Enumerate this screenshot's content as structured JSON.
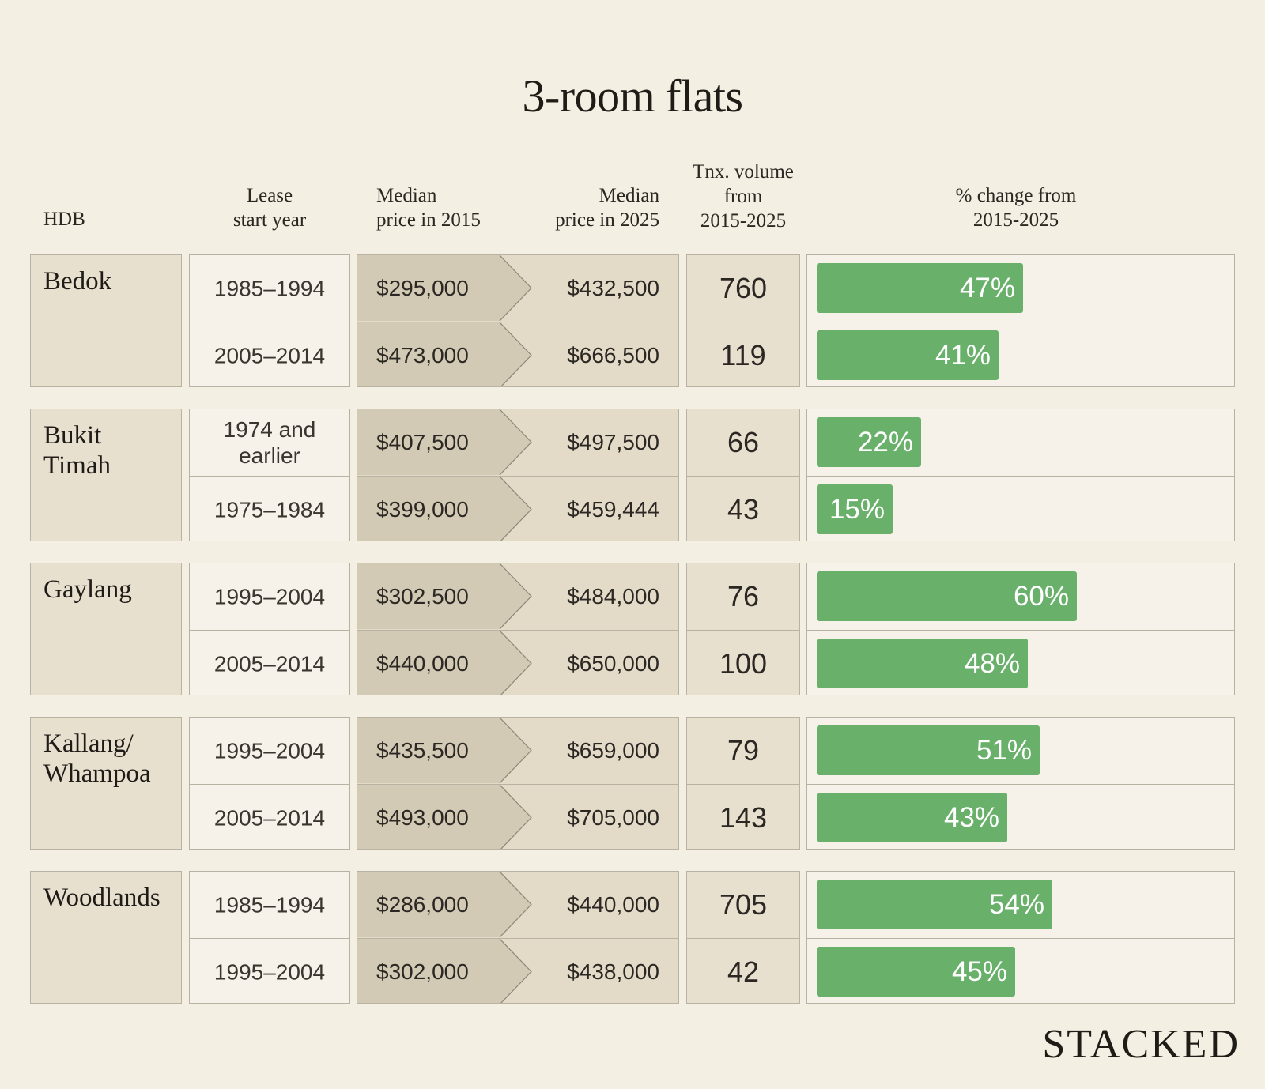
{
  "title": "3-room flats",
  "headers": {
    "hdb": "HDB",
    "lease": "Lease\nstart year",
    "median2015": "Median\nprice in 2015",
    "median2025": "Median\nprice in 2025",
    "volume": "Tnx. volume\nfrom\n2015-2025",
    "change": "% change from\n2015-2025"
  },
  "brand": "STACKED",
  "colors": {
    "background": "#f4efe3",
    "bar": "#69b06b",
    "price2015_fill": "#d3cab6",
    "price2025_fill": "#e3dac8"
  },
  "chart_data": {
    "type": "table",
    "title": "3-room flats",
    "columns": [
      "HDB",
      "Lease start year",
      "Median price in 2015",
      "Median price in 2025",
      "Tnx. volume from 2015-2025",
      "% change from 2015-2025"
    ],
    "groups": [
      {
        "hdb": "Bedok",
        "rows": [
          {
            "lease": "1985–1994",
            "p2015": "$295,000",
            "p2025": "$432,500",
            "volume": "760",
            "change": 47,
            "change_label": "47%"
          },
          {
            "lease": "2005–2014",
            "p2015": "$473,000",
            "p2025": "$666,500",
            "volume": "119",
            "change": 41,
            "change_label": "41%"
          }
        ]
      },
      {
        "hdb": "Bukit\nTimah",
        "rows": [
          {
            "lease": "1974 and\nearlier",
            "p2015": "$407,500",
            "p2025": "$497,500",
            "volume": "66",
            "change": 22,
            "change_label": "22%"
          },
          {
            "lease": "1975–1984",
            "p2015": "$399,000",
            "p2025": "$459,444",
            "volume": "43",
            "change": 15,
            "change_label": "15%"
          }
        ]
      },
      {
        "hdb": "Gaylang",
        "rows": [
          {
            "lease": "1995–2004",
            "p2015": "$302,500",
            "p2025": "$484,000",
            "volume": "76",
            "change": 60,
            "change_label": "60%"
          },
          {
            "lease": "2005–2014",
            "p2015": "$440,000",
            "p2025": "$650,000",
            "volume": "100",
            "change": 48,
            "change_label": "48%"
          }
        ]
      },
      {
        "hdb": "Kallang/\nWhampoa",
        "rows": [
          {
            "lease": "1995–2004",
            "p2015": "$435,500",
            "p2025": "$659,000",
            "volume": "79",
            "change": 51,
            "change_label": "51%"
          },
          {
            "lease": "2005–2014",
            "p2015": "$493,000",
            "p2025": "$705,000",
            "volume": "143",
            "change": 43,
            "change_label": "43%"
          }
        ]
      },
      {
        "hdb": "Woodlands",
        "rows": [
          {
            "lease": "1985–1994",
            "p2015": "$286,000",
            "p2025": "$440,000",
            "volume": "705",
            "change": 54,
            "change_label": "54%"
          },
          {
            "lease": "1995–2004",
            "p2015": "$302,000",
            "p2025": "$438,000",
            "volume": "42",
            "change": 45,
            "change_label": "45%"
          }
        ]
      }
    ]
  }
}
